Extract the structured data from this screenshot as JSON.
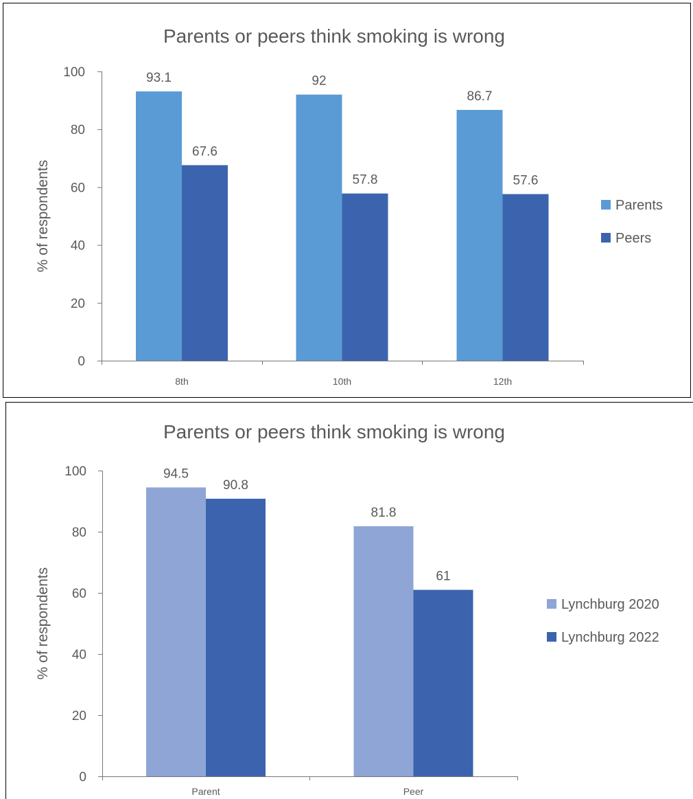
{
  "chart_data": [
    {
      "type": "bar",
      "title": "Parents or peers think smoking is wrong",
      "xlabel": "",
      "ylabel": "% of respondents",
      "categories": [
        "8th",
        "10th",
        "12th"
      ],
      "series": [
        {
          "name": "Parents",
          "values": [
            93.1,
            92,
            86.7
          ],
          "color": "#5b9bd5"
        },
        {
          "name": "Peers",
          "values": [
            67.6,
            57.8,
            57.6
          ],
          "color": "#3c64ae"
        }
      ],
      "ylim": [
        0,
        100
      ],
      "yticks": [
        0,
        20,
        40,
        60,
        80,
        100
      ],
      "grid": false,
      "legend_position": "right",
      "data_labels": true
    },
    {
      "type": "bar",
      "title": "Parents or peers think smoking is wrong",
      "xlabel": "",
      "ylabel": "% of respondents",
      "categories": [
        "Parent",
        "Peer"
      ],
      "series": [
        {
          "name": "Lynchburg 2020",
          "values": [
            94.5,
            81.8
          ],
          "color": "#8ea5d6"
        },
        {
          "name": "Lynchburg 2022",
          "values": [
            90.8,
            61
          ],
          "color": "#3c64ae"
        }
      ],
      "ylim": [
        0,
        100
      ],
      "yticks": [
        0,
        20,
        40,
        60,
        80,
        100
      ],
      "grid": false,
      "legend_position": "right",
      "data_labels": true
    }
  ]
}
